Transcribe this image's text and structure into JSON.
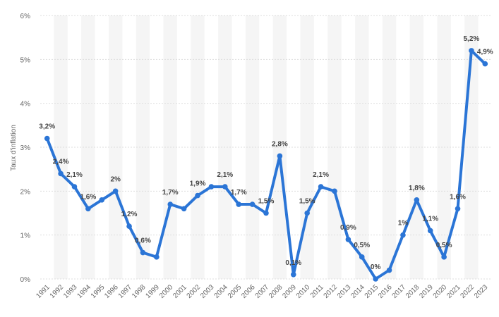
{
  "chart_data": {
    "type": "line",
    "title": "",
    "xlabel": "",
    "ylabel": "Taux d'inflation",
    "ylim": [
      0,
      6
    ],
    "yticks": [
      "0%",
      "1%",
      "2%",
      "3%",
      "4%",
      "5%",
      "6%"
    ],
    "grid": true,
    "categories": [
      "1991",
      "1992",
      "1993",
      "1994",
      "1995",
      "1996",
      "1997",
      "1998",
      "1999",
      "2000",
      "2001",
      "2002",
      "2003",
      "2004",
      "2005",
      "2006",
      "2007",
      "2008",
      "2009",
      "2010",
      "2011",
      "2012",
      "2013",
      "2014",
      "2015",
      "2016",
      "2017",
      "2018",
      "2019",
      "2020",
      "2021",
      "2022",
      "2023"
    ],
    "values": [
      3.2,
      2.4,
      2.1,
      1.6,
      1.8,
      2.0,
      1.2,
      0.6,
      0.5,
      1.7,
      1.6,
      1.9,
      2.1,
      2.1,
      1.7,
      1.7,
      1.5,
      2.8,
      0.1,
      1.5,
      2.1,
      2.0,
      0.9,
      0.5,
      0.0,
      0.2,
      1.0,
      1.8,
      1.1,
      0.5,
      1.6,
      5.2,
      4.9
    ],
    "data_labels": [
      "3,2%",
      "2,4%",
      "2,1%",
      "1,6%",
      "",
      "2%",
      "1,2%",
      "0,6%",
      "",
      "1,7%",
      "",
      "1,9%",
      "",
      "2,1%",
      "1,7%",
      "",
      "1,5%",
      "2,8%",
      "0,1%",
      "1,5%",
      "2,1%",
      "",
      "0,9%",
      "0,5%",
      "0%",
      "",
      "1%",
      "1,8%",
      "1,1%",
      "0,5%",
      "1,6%",
      "5,2%",
      "4,9%"
    ],
    "line_color": "#2b75d6",
    "band_color": "#f5f5f5",
    "grid_color": "#dddddd"
  }
}
